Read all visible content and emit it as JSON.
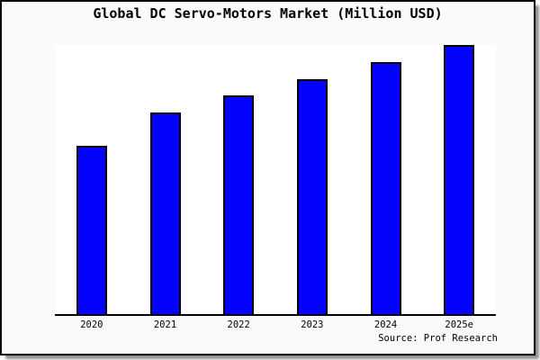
{
  "page": {
    "title": "Global DC Servo-Motors Market (Million USD)",
    "source_note": "Source: Prof Research"
  },
  "chart_data": {
    "type": "bar",
    "title": "Global DC Servo-Motors Market (Million USD)",
    "categories": [
      "2020",
      "2021",
      "2022",
      "2023",
      "2024",
      "2025e"
    ],
    "series": [
      {
        "name": "Global DC Servo-Motors Market (Million USD)",
        "values_relative_max100": [
          62.4,
          74.9,
          81.4,
          87.4,
          93.5,
          100
        ]
      }
    ],
    "xlabel": "",
    "ylabel": "",
    "axis_notes": "No y-axis tick labels or gridlines are shown; values are relative bar heights with the tallest bar (2025e) = 100. Only the x-axis baseline is drawn.",
    "legend": "none",
    "grid": "off",
    "source": "Source: Prof Research"
  },
  "colors": {
    "bar_fill": "#0202fe",
    "bar_border": "#000000",
    "axis_line": "#000000",
    "card_background": "#fafafa",
    "plot_background": "#ffffff",
    "card_border": "#0a0a0a",
    "text": "#000000"
  }
}
